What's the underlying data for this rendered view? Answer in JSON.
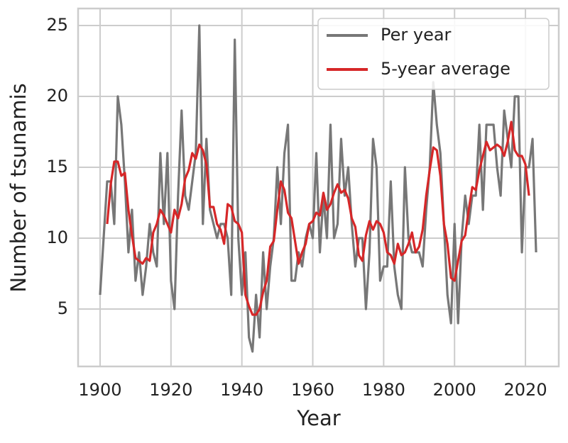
{
  "chart_data": {
    "type": "line",
    "xlabel": "Year",
    "ylabel": "Number of tsunamis",
    "x": [
      1900,
      1901,
      1902,
      1903,
      1904,
      1905,
      1906,
      1907,
      1908,
      1909,
      1910,
      1911,
      1912,
      1913,
      1914,
      1915,
      1916,
      1917,
      1918,
      1919,
      1920,
      1921,
      1922,
      1923,
      1924,
      1925,
      1926,
      1927,
      1928,
      1929,
      1930,
      1931,
      1932,
      1933,
      1934,
      1935,
      1936,
      1937,
      1938,
      1939,
      1940,
      1941,
      1942,
      1943,
      1944,
      1945,
      1946,
      1947,
      1948,
      1949,
      1950,
      1951,
      1952,
      1953,
      1954,
      1955,
      1956,
      1957,
      1958,
      1959,
      1960,
      1961,
      1962,
      1963,
      1964,
      1965,
      1966,
      1967,
      1968,
      1969,
      1970,
      1971,
      1972,
      1973,
      1974,
      1975,
      1976,
      1977,
      1978,
      1979,
      1980,
      1981,
      1982,
      1983,
      1984,
      1985,
      1986,
      1987,
      1988,
      1989,
      1990,
      1991,
      1992,
      1993,
      1994,
      1995,
      1996,
      1997,
      1998,
      1999,
      2000,
      2001,
      2002,
      2003,
      2004,
      2005,
      2006,
      2007,
      2008,
      2009,
      2010,
      2011,
      2012,
      2013,
      2014,
      2015,
      2016,
      2017,
      2018,
      2019,
      2020,
      2021,
      2022,
      2023
    ],
    "series": [
      {
        "name": "Per year",
        "color": "#777777",
        "values": [
          6,
          10,
          14,
          14,
          11,
          20,
          18,
          14,
          9,
          12,
          7,
          9,
          6,
          8,
          11,
          9,
          8,
          16,
          11,
          16,
          7,
          5,
          13,
          19,
          13,
          12,
          14,
          16,
          25,
          11,
          17,
          12,
          11,
          10,
          11,
          11,
          10,
          6,
          24,
          10,
          6,
          9,
          3,
          2,
          6,
          3,
          9,
          5,
          8,
          10,
          15,
          11,
          16,
          18,
          7,
          7,
          9,
          8,
          10,
          11,
          10,
          16,
          9,
          13,
          10,
          18,
          10,
          11,
          17,
          13,
          15,
          11,
          8,
          10,
          10,
          5,
          9,
          17,
          15,
          7,
          8,
          8,
          14,
          8,
          6,
          5,
          15,
          10,
          9,
          9,
          9,
          8,
          12,
          15,
          21,
          18,
          16,
          11,
          6,
          4,
          11,
          4,
          10,
          13,
          11,
          13,
          13,
          18,
          12,
          18,
          18,
          18,
          15,
          13,
          19,
          17,
          15,
          20,
          20,
          9,
          15,
          15,
          17,
          9
        ]
      },
      {
        "name": "5-year average",
        "color": "#d62728",
        "values": [
          null,
          null,
          11.0,
          13.8,
          15.4,
          15.4,
          14.4,
          14.6,
          12.0,
          10.2,
          8.6,
          8.4,
          8.2,
          8.6,
          8.4,
          10.4,
          11.0,
          12.0,
          11.6,
          11.0,
          10.4,
          12.0,
          11.4,
          12.4,
          14.2,
          14.8,
          16.0,
          15.6,
          16.6,
          16.2,
          15.2,
          12.2,
          12.2,
          11.0,
          10.6,
          9.6,
          12.4,
          12.2,
          11.2,
          11.0,
          10.4,
          6.0,
          5.2,
          4.6,
          4.6,
          5.0,
          6.2,
          7.0,
          9.4,
          9.8,
          12.0,
          14.0,
          13.4,
          11.8,
          11.4,
          9.8,
          8.2,
          9.0,
          9.6,
          11.0,
          11.2,
          11.8,
          11.6,
          13.2,
          12.0,
          12.4,
          13.2,
          13.8,
          13.2,
          13.4,
          12.8,
          11.4,
          10.8,
          8.8,
          8.4,
          10.2,
          11.2,
          10.6,
          11.2,
          11.0,
          10.4,
          9.0,
          8.8,
          8.2,
          9.6,
          8.8,
          9.0,
          9.6,
          10.4,
          9.0,
          9.4,
          10.6,
          13.0,
          14.8,
          16.4,
          16.2,
          14.4,
          11.0,
          9.6,
          7.2,
          7.0,
          8.4,
          9.8,
          10.2,
          12.0,
          13.6,
          13.4,
          14.8,
          15.8,
          16.8,
          16.2,
          16.4,
          16.6,
          16.4,
          15.8,
          16.8,
          18.2,
          16.2,
          15.8,
          15.8,
          15.2,
          13.0,
          null,
          null
        ]
      }
    ],
    "xlim": [
      1893.8,
      2029.4
    ],
    "ylim": [
      0.95,
      26.2
    ],
    "xticks": [
      1900,
      1920,
      1940,
      1960,
      1980,
      2000,
      2020
    ],
    "yticks": [
      5,
      10,
      15,
      20,
      25
    ],
    "grid": true,
    "legend": "upper right"
  }
}
